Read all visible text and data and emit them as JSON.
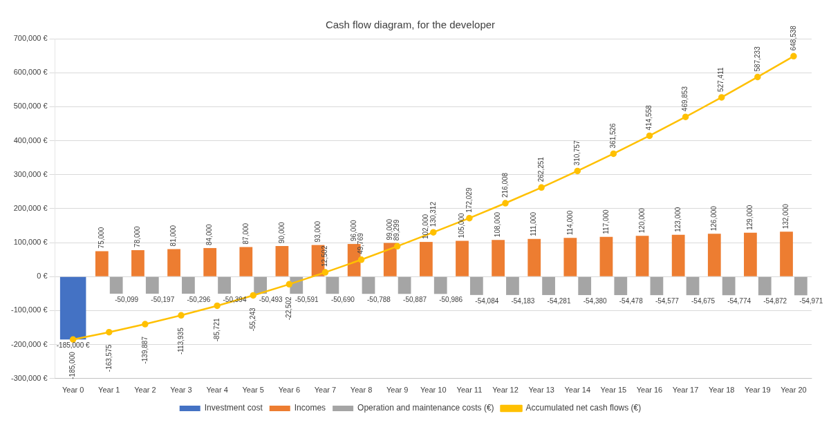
{
  "chart_data": {
    "type": "bar",
    "title": "Cash flow diagram, for the developer",
    "categories": [
      "Year 0",
      "Year 1",
      "Year 2",
      "Year 3",
      "Year 4",
      "Year 5",
      "Year 6",
      "Year 7",
      "Year 8",
      "Year 9",
      "Year 10",
      "Year 11",
      "Year 12",
      "Year 13",
      "Year 14",
      "Year 15",
      "Year 16",
      "Year 17",
      "Year 18",
      "Year 19",
      "Year 20"
    ],
    "series": [
      {
        "name": "Investment cost",
        "color": "#4472c4",
        "values": [
          -185000,
          null,
          null,
          null,
          null,
          null,
          null,
          null,
          null,
          null,
          null,
          null,
          null,
          null,
          null,
          null,
          null,
          null,
          null,
          null,
          null
        ],
        "value_labels": [
          "-185,000 €",
          null,
          null,
          null,
          null,
          null,
          null,
          null,
          null,
          null,
          null,
          null,
          null,
          null,
          null,
          null,
          null,
          null,
          null,
          null,
          null
        ]
      },
      {
        "name": "Incomes",
        "color": "#ed7d31",
        "values": [
          null,
          75000,
          78000,
          81000,
          84000,
          87000,
          90000,
          93000,
          96000,
          99000,
          102000,
          105000,
          108000,
          111000,
          114000,
          117000,
          120000,
          123000,
          126000,
          129000,
          132000
        ],
        "value_labels": [
          null,
          "75,000",
          "78,000",
          "81,000",
          "84,000",
          "87,000",
          "90,000",
          "93,000",
          "96,000",
          "99,000",
          "102,000",
          "105,000",
          "108,000",
          "111,000",
          "114,000",
          "117,000",
          "120,000",
          "123,000",
          "126,000",
          "129,000",
          "132,000"
        ]
      },
      {
        "name": "Operation and maintenance costs (€)",
        "color": "#a5a5a5",
        "values": [
          null,
          -50099,
          -50197,
          -50296,
          -50394,
          -50493,
          -50591,
          -50690,
          -50788,
          -50887,
          -50986,
          -54084,
          -54183,
          -54281,
          -54380,
          -54478,
          -54577,
          -54675,
          -54774,
          -54872,
          -54971
        ],
        "value_labels": [
          null,
          "-50,099",
          "-50,197",
          "-50,296",
          "-50,394",
          "-50,493",
          "-50,591",
          "-50,690",
          "-50,788",
          "-50,887",
          "-50,986",
          "-54,084",
          "-54,183",
          "-54,281",
          "-54,380",
          "-54,478",
          "-54,577",
          "-54,675",
          "-54,774",
          "-54,872",
          "-54,971"
        ]
      },
      {
        "name": "Accumulated net cash flows (€)",
        "type": "line",
        "color": "#ffc000",
        "marker": "circle",
        "values": [
          -185000,
          -163575,
          -139887,
          -113935,
          -85721,
          -55243,
          -22502,
          12502,
          49769,
          89299,
          130312,
          172029,
          216008,
          262251,
          310757,
          361526,
          414558,
          469853,
          527411,
          587233,
          648538
        ],
        "value_labels": [
          "-185,000",
          "-163,575",
          "-139,887",
          "-113,935",
          "-85,721",
          "-55,243",
          "-22,502",
          "12,502",
          "49,769",
          "89,299",
          "130,312",
          "172,029",
          "216,008",
          "262,251",
          "310,757",
          "361,526",
          "414,558",
          "469,853",
          "527,411",
          "587,233",
          "648,538"
        ]
      }
    ],
    "ylim": [
      -300000,
      700000
    ],
    "yticks": [
      {
        "value": -300000,
        "label": "-300,000 €"
      },
      {
        "value": -200000,
        "label": "-200,000 €"
      },
      {
        "value": -100000,
        "label": "-100,000 €"
      },
      {
        "value": 0,
        "label": "0 €"
      },
      {
        "value": 100000,
        "label": "100,000 €"
      },
      {
        "value": 200000,
        "label": "200,000 €"
      },
      {
        "value": 300000,
        "label": "300,000 €"
      },
      {
        "value": 400000,
        "label": "400,000 €"
      },
      {
        "value": 500000,
        "label": "500,000 €"
      },
      {
        "value": 600000,
        "label": "600,000 €"
      },
      {
        "value": 700000,
        "label": "700,000 €"
      }
    ],
    "grid": "y",
    "legend": "bottom"
  }
}
